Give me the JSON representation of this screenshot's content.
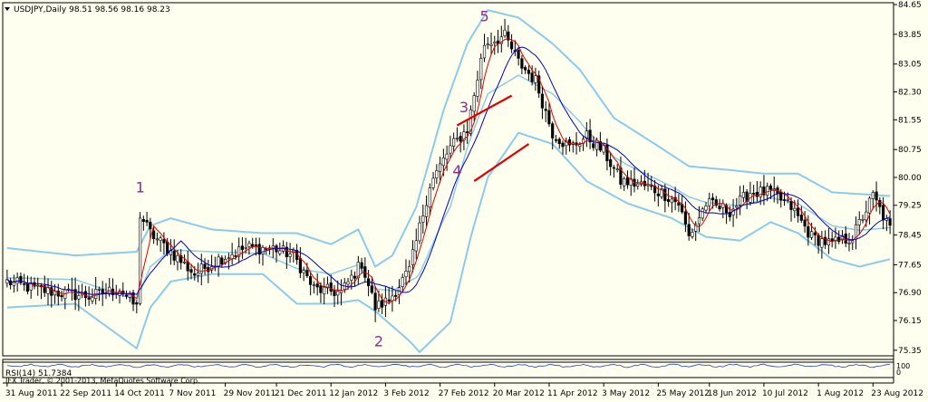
{
  "header": {
    "symbol_line": "USDJPY,Daily  98.51 98.56 98.16 98.23"
  },
  "rsi_panel": {
    "label": "RSI(14) 51.7384",
    "level_top": "100",
    "level_bottom": "0"
  },
  "copyright": "IFX Trader, © 2001-2013, MetaQuotes Software Corp.",
  "colors": {
    "background": "#fffff0",
    "bollinger": "#8ccbe8",
    "ma_fast": "#e00000",
    "ma_slow": "#0000c0",
    "wave_label": "#8a2d8a",
    "trendline": "#e00000",
    "candle_bull": "#ffffff",
    "candle_bear": "#000000"
  },
  "chart_data": {
    "type": "candlestick",
    "symbol": "USDJPY",
    "timeframe": "Daily",
    "y_ticks": [
      "84.65",
      "83.85",
      "83.05",
      "82.30",
      "81.55",
      "80.75",
      "80.00",
      "79.25",
      "78.45",
      "77.65",
      "76.90",
      "76.15",
      "75.35"
    ],
    "x_ticks": [
      "31 Aug 2011",
      "22 Sep 2011",
      "14 Oct 2011",
      "7 Nov 2011",
      "29 Nov 2011",
      "21 Dec 2011",
      "12 Jan 2012",
      "3 Feb 2012",
      "27 Feb 2012",
      "20 Mar 2012",
      "11 Apr 2012",
      "3 May 2012",
      "25 May 2012",
      "18 Jun 2012",
      "10 Jul 2012",
      "1 Aug 2012",
      "23 Aug 2012"
    ],
    "ylim": [
      75.2,
      84.7
    ],
    "bars": 260,
    "close_anchors": [
      [
        0,
        77.2
      ],
      [
        8,
        77.0
      ],
      [
        15,
        76.9
      ],
      [
        24,
        76.8
      ],
      [
        33,
        77.0
      ],
      [
        38,
        76.5
      ],
      [
        39,
        79.0
      ],
      [
        42,
        78.5
      ],
      [
        48,
        78.0
      ],
      [
        55,
        77.4
      ],
      [
        62,
        77.8
      ],
      [
        70,
        78.1
      ],
      [
        78,
        78.1
      ],
      [
        84,
        77.9
      ],
      [
        90,
        77.0
      ],
      [
        98,
        76.9
      ],
      [
        104,
        77.7
      ],
      [
        108,
        76.5
      ],
      [
        112,
        76.7
      ],
      [
        118,
        77.5
      ],
      [
        124,
        79.8
      ],
      [
        130,
        80.8
      ],
      [
        135,
        81.3
      ],
      [
        140,
        83.6
      ],
      [
        146,
        83.8
      ],
      [
        150,
        83.1
      ],
      [
        155,
        82.6
      ],
      [
        160,
        81.2
      ],
      [
        165,
        80.8
      ],
      [
        170,
        81.1
      ],
      [
        175,
        80.7
      ],
      [
        180,
        79.9
      ],
      [
        186,
        79.8
      ],
      [
        192,
        79.6
      ],
      [
        197,
        79.3
      ],
      [
        200,
        78.4
      ],
      [
        205,
        79.3
      ],
      [
        212,
        79.1
      ],
      [
        218,
        79.6
      ],
      [
        224,
        79.6
      ],
      [
        230,
        79.2
      ],
      [
        236,
        78.4
      ],
      [
        242,
        78.2
      ],
      [
        248,
        78.4
      ],
      [
        254,
        79.5
      ],
      [
        259,
        78.6
      ]
    ],
    "bollinger": {
      "upper": [
        [
          0,
          78.1
        ],
        [
          20,
          77.9
        ],
        [
          38,
          78.0
        ],
        [
          42,
          78.7
        ],
        [
          48,
          78.9
        ],
        [
          60,
          78.6
        ],
        [
          75,
          78.5
        ],
        [
          85,
          78.5
        ],
        [
          95,
          78.2
        ],
        [
          103,
          78.6
        ],
        [
          108,
          77.6
        ],
        [
          113,
          77.9
        ],
        [
          120,
          79.2
        ],
        [
          128,
          81.8
        ],
        [
          135,
          83.6
        ],
        [
          141,
          84.5
        ],
        [
          150,
          84.3
        ],
        [
          160,
          83.6
        ],
        [
          168,
          82.9
        ],
        [
          178,
          81.6
        ],
        [
          190,
          80.9
        ],
        [
          200,
          80.3
        ],
        [
          212,
          80.2
        ],
        [
          222,
          80.1
        ],
        [
          232,
          80.1
        ],
        [
          242,
          79.6
        ],
        [
          259,
          79.5
        ]
      ],
      "lower": [
        [
          0,
          76.5
        ],
        [
          20,
          76.6
        ],
        [
          38,
          75.4
        ],
        [
          42,
          76.5
        ],
        [
          48,
          77.2
        ],
        [
          60,
          77.4
        ],
        [
          75,
          77.4
        ],
        [
          85,
          76.6
        ],
        [
          95,
          76.6
        ],
        [
          103,
          76.7
        ],
        [
          108,
          76.4
        ],
        [
          113,
          76.0
        ],
        [
          118,
          75.6
        ],
        [
          121,
          75.3
        ],
        [
          130,
          76.1
        ],
        [
          136,
          78.4
        ],
        [
          141,
          80.0
        ],
        [
          150,
          81.2
        ],
        [
          160,
          80.9
        ],
        [
          170,
          79.9
        ],
        [
          182,
          79.3
        ],
        [
          195,
          78.9
        ],
        [
          205,
          78.4
        ],
        [
          215,
          78.3
        ],
        [
          224,
          78.8
        ],
        [
          232,
          78.5
        ],
        [
          242,
          77.8
        ],
        [
          250,
          77.6
        ],
        [
          259,
          77.8
        ]
      ]
    },
    "annotations": [
      {
        "text": "1",
        "bar": 39,
        "price": 79.6
      },
      {
        "text": "2",
        "bar": 109,
        "price": 75.45
      },
      {
        "text": "3",
        "bar": 134,
        "price": 81.75
      },
      {
        "text": "4",
        "bar": 132,
        "price": 80.05
      },
      {
        "text": "5",
        "bar": 140,
        "price": 84.2
      }
    ],
    "trendlines": [
      {
        "from": [
          132,
          81.4
        ],
        "to": [
          148,
          82.2
        ]
      },
      {
        "from": [
          137,
          79.9
        ],
        "to": [
          153,
          80.9
        ]
      }
    ]
  }
}
